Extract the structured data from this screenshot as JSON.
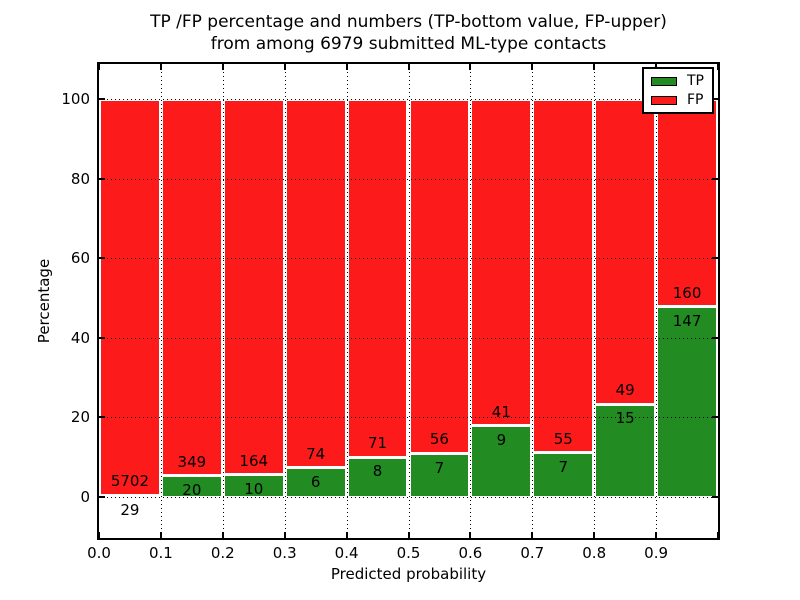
{
  "title": {
    "line1": "TP /FP percentage and numbers (TP-bottom value, FP-upper)",
    "line2": "from among 6979 submitted ML-type contacts"
  },
  "axes": {
    "xlabel": "Predicted probability",
    "ylabel": "Percentage",
    "x_tick_labels": [
      "0.0",
      "0.1",
      "0.2",
      "0.3",
      "0.4",
      "0.5",
      "0.6",
      "0.7",
      "0.8",
      "0.9"
    ],
    "y_tick_labels": [
      "0",
      "20",
      "40",
      "60",
      "80",
      "100"
    ]
  },
  "legend": {
    "entries": [
      {
        "label": "TP",
        "color": "#228b22"
      },
      {
        "label": "FP",
        "color": "#fc1a1a"
      }
    ]
  },
  "colors": {
    "tp_green": "#228b22",
    "fp_red": "#fc1a1a",
    "bar_edge": "#ffffff",
    "grid": "#000000",
    "background": "#ffffff"
  },
  "chart_data": {
    "type": "bar",
    "stacked": true,
    "normalization": "each bar stack scaled to 100 percent, TP on bottom, FP on top",
    "title": "TP /FP percentage and numbers (TP-bottom value, FP-upper) from among 6979 submitted ML-type contacts",
    "xlabel": "Predicted probability",
    "ylabel": "Percentage",
    "bin_edges": [
      0.0,
      0.1,
      0.2,
      0.3,
      0.4,
      0.5,
      0.6,
      0.7,
      0.8,
      0.9,
      1.0
    ],
    "categories": [
      "0.0-0.1",
      "0.1-0.2",
      "0.2-0.3",
      "0.3-0.4",
      "0.4-0.5",
      "0.5-0.6",
      "0.6-0.7",
      "0.7-0.8",
      "0.8-0.9",
      "0.9-1.0"
    ],
    "series": [
      {
        "name": "TP",
        "color": "#228b22",
        "counts": [
          29,
          20,
          10,
          6,
          8,
          7,
          9,
          7,
          15,
          147
        ]
      },
      {
        "name": "FP",
        "color": "#fc1a1a",
        "counts": [
          5702,
          349,
          164,
          74,
          71,
          56,
          41,
          55,
          49,
          160
        ]
      }
    ],
    "total_contacts": 6979,
    "x_ticks": [
      0.0,
      0.1,
      0.2,
      0.3,
      0.4,
      0.5,
      0.6,
      0.7,
      0.8,
      0.9
    ],
    "y_ticks": [
      0,
      20,
      40,
      60,
      80,
      100
    ],
    "xlim": [
      0.0,
      1.0
    ],
    "ylim": [
      -10.8,
      109.3
    ],
    "grid": "dotted black, drawn above bars",
    "legend_position": "upper right"
  }
}
